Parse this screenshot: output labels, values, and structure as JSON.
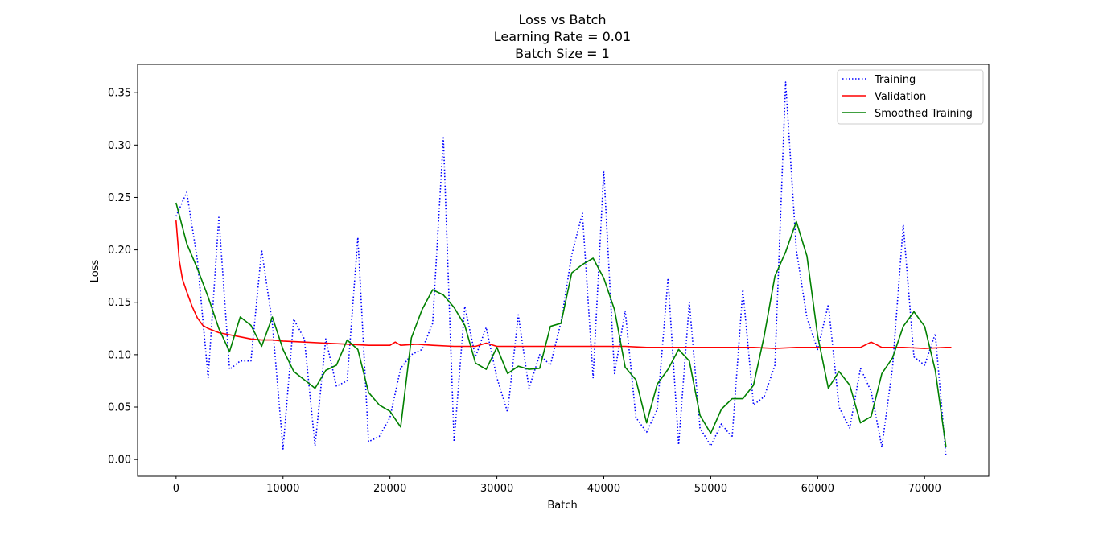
{
  "chart_data": {
    "type": "line",
    "title": [
      "Loss vs Batch",
      "Learning Rate = 0.01",
      "Batch Size = 1"
    ],
    "xlabel": "Batch",
    "ylabel": "Loss",
    "xlim": [
      -3600,
      76000
    ],
    "ylim": [
      -0.016,
      0.377
    ],
    "xticks": [
      0,
      10000,
      20000,
      30000,
      40000,
      50000,
      60000,
      70000
    ],
    "xtick_labels": [
      "0",
      "10000",
      "20000",
      "30000",
      "40000",
      "50000",
      "60000",
      "70000"
    ],
    "yticks": [
      0.0,
      0.05,
      0.1,
      0.15,
      0.2,
      0.25,
      0.3,
      0.35
    ],
    "ytick_labels": [
      "0.00",
      "0.05",
      "0.10",
      "0.15",
      "0.20",
      "0.25",
      "0.30",
      "0.35"
    ],
    "grid": false,
    "legend_position": "upper-right",
    "series": [
      {
        "name": "Training",
        "color": "#0000ff",
        "style": "dotted",
        "x": [
          0,
          1000,
          2000,
          3000,
          4000,
          5000,
          6000,
          7000,
          8000,
          9000,
          10000,
          11000,
          12000,
          13000,
          14000,
          15000,
          16000,
          17000,
          18000,
          19000,
          20000,
          21000,
          22000,
          23000,
          24000,
          25000,
          26000,
          27000,
          28000,
          29000,
          30000,
          31000,
          32000,
          33000,
          34000,
          35000,
          36000,
          37000,
          38000,
          39000,
          40000,
          41000,
          42000,
          43000,
          44000,
          45000,
          46000,
          47000,
          48000,
          49000,
          50000,
          51000,
          52000,
          53000,
          54000,
          55000,
          56000,
          57000,
          58000,
          59000,
          60000,
          61000,
          62000,
          63000,
          64000,
          65000,
          66000,
          67000,
          68000,
          69000,
          70000,
          71000,
          72000
        ],
        "y": [
          0.232,
          0.255,
          0.19,
          0.078,
          0.231,
          0.086,
          0.094,
          0.094,
          0.2,
          0.13,
          0.01,
          0.134,
          0.115,
          0.013,
          0.115,
          0.07,
          0.075,
          0.212,
          0.017,
          0.022,
          0.04,
          0.087,
          0.1,
          0.105,
          0.13,
          0.307,
          0.017,
          0.146,
          0.098,
          0.126,
          0.078,
          0.045,
          0.138,
          0.068,
          0.1,
          0.09,
          0.131,
          0.195,
          0.235,
          0.078,
          0.276,
          0.082,
          0.142,
          0.04,
          0.026,
          0.048,
          0.173,
          0.014,
          0.15,
          0.03,
          0.013,
          0.034,
          0.021,
          0.162,
          0.052,
          0.06,
          0.09,
          0.36,
          0.2,
          0.135,
          0.105,
          0.148,
          0.05,
          0.03,
          0.087,
          0.065,
          0.012,
          0.088,
          0.224,
          0.098,
          0.09,
          0.12,
          0.003
        ]
      },
      {
        "name": "Validation",
        "color": "#ff0000",
        "style": "solid",
        "x": [
          0,
          300,
          600,
          1000,
          1500,
          2000,
          2500,
          3000,
          4000,
          5000,
          6000,
          7000,
          8000,
          9000,
          10000,
          12000,
          14000,
          16000,
          18000,
          20000,
          20500,
          21000,
          22500,
          24000,
          26000,
          28000,
          29000,
          30000,
          32000,
          34000,
          36000,
          38000,
          40000,
          42000,
          44000,
          46000,
          48000,
          50000,
          52000,
          54000,
          56000,
          58000,
          60000,
          62000,
          64000,
          65000,
          66000,
          68000,
          70000,
          72000,
          72500
        ],
        "y": [
          0.228,
          0.19,
          0.172,
          0.16,
          0.146,
          0.135,
          0.128,
          0.125,
          0.121,
          0.119,
          0.117,
          0.115,
          0.114,
          0.114,
          0.113,
          0.112,
          0.111,
          0.11,
          0.109,
          0.109,
          0.112,
          0.109,
          0.11,
          0.109,
          0.108,
          0.108,
          0.111,
          0.108,
          0.108,
          0.108,
          0.108,
          0.108,
          0.108,
          0.108,
          0.107,
          0.107,
          0.107,
          0.107,
          0.107,
          0.107,
          0.106,
          0.107,
          0.107,
          0.107,
          0.107,
          0.112,
          0.107,
          0.107,
          0.106,
          0.107,
          0.107
        ]
      },
      {
        "name": "Smoothed Training",
        "color": "#008000",
        "style": "solid",
        "x": [
          0,
          1000,
          2000,
          3000,
          4000,
          5000,
          6000,
          7000,
          8000,
          9000,
          10000,
          11000,
          12000,
          13000,
          14000,
          15000,
          16000,
          17000,
          18000,
          19000,
          20000,
          21000,
          22000,
          23000,
          24000,
          25000,
          26000,
          27000,
          28000,
          29000,
          30000,
          31000,
          32000,
          33000,
          34000,
          35000,
          36000,
          37000,
          38000,
          39000,
          40000,
          41000,
          42000,
          43000,
          44000,
          45000,
          46000,
          47000,
          48000,
          49000,
          50000,
          51000,
          52000,
          53000,
          54000,
          55000,
          56000,
          57000,
          58000,
          59000,
          60000,
          61000,
          62000,
          63000,
          64000,
          65000,
          66000,
          67000,
          68000,
          69000,
          70000,
          71000,
          72000
        ],
        "y": [
          0.245,
          0.206,
          0.182,
          0.155,
          0.125,
          0.103,
          0.136,
          0.128,
          0.108,
          0.136,
          0.105,
          0.084,
          0.076,
          0.068,
          0.085,
          0.09,
          0.114,
          0.105,
          0.064,
          0.052,
          0.046,
          0.031,
          0.116,
          0.143,
          0.162,
          0.157,
          0.145,
          0.128,
          0.092,
          0.086,
          0.107,
          0.082,
          0.089,
          0.086,
          0.087,
          0.127,
          0.13,
          0.178,
          0.186,
          0.192,
          0.173,
          0.143,
          0.088,
          0.076,
          0.035,
          0.072,
          0.086,
          0.105,
          0.094,
          0.042,
          0.025,
          0.048,
          0.058,
          0.058,
          0.071,
          0.118,
          0.175,
          0.198,
          0.227,
          0.194,
          0.118,
          0.068,
          0.084,
          0.071,
          0.035,
          0.041,
          0.082,
          0.097,
          0.127,
          0.141,
          0.127,
          0.085,
          0.012
        ]
      }
    ]
  }
}
